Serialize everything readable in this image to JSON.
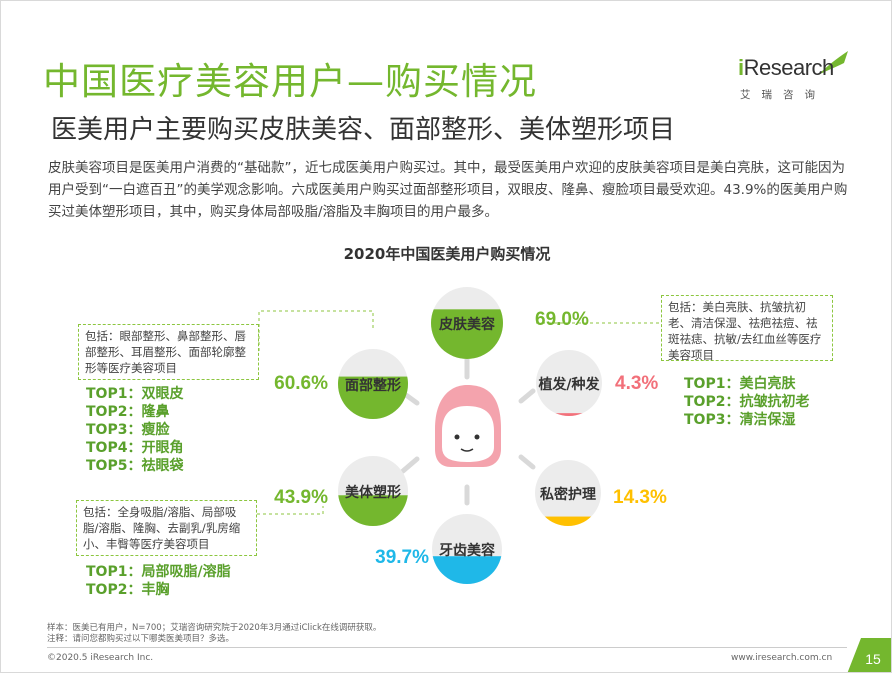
{
  "header": {
    "title": "中国医疗美容用户—购买情况",
    "subtitle": "医美用户主要购买皮肤美容、面部整形、美体塑形项目"
  },
  "logo": {
    "word_i": "i",
    "word_rest": "Research",
    "chinese": "艾瑞咨询"
  },
  "intro": "皮肤美容项目是医美用户消费的“基础款”，近七成医美用户购买过。其中，最受医美用户欢迎的皮肤美容项目是美白亮肤，这可能因为用户受到“一白遮百丑”的美学观念影响。六成医美用户购买过面部整形项目，双眼皮、隆鼻、瘦脸项目最受欢迎。43.9%的医美用户购买过美体塑形项目，其中，购买身体局部吸脂/溶脂及丰胸项目的用户最多。",
  "chart_data": {
    "type": "bubble-ring",
    "title": "2020年中国医美用户购买情况",
    "categories": [
      "皮肤美容",
      "植发/种发",
      "私密护理",
      "牙齿美容",
      "美体塑形",
      "面部整形"
    ],
    "values": [
      69.0,
      4.3,
      14.3,
      39.7,
      43.9,
      60.6
    ],
    "value_labels": [
      "69.0%",
      "4.3%",
      "14.3%",
      "39.7%",
      "43.9%",
      "60.6%"
    ],
    "unit": "%",
    "colors": [
      "#74b72e",
      "#f2707a",
      "#ffc000",
      "#1fb8e8",
      "#74b72e",
      "#74b72e"
    ]
  },
  "notes": {
    "face": {
      "desc": "包括：眼部整形、鼻部整形、唇部整形、耳眉整形、面部轮廓整形等医疗美容项目",
      "tops": [
        "TOP1：双眼皮",
        "TOP2：隆鼻",
        "TOP3：瘦脸",
        "TOP4：开眼角",
        "TOP5：祛眼袋"
      ]
    },
    "skin": {
      "desc": "包括：美白亮肤、抗皱抗初老、清洁保湿、祛疤祛痘、祛斑祛痣、抗敏/去红血丝等医疗美容项目",
      "tops": [
        "TOP1：美白亮肤",
        "TOP2：抗皱抗初老",
        "TOP3：清洁保湿"
      ]
    },
    "body": {
      "desc": "包括：全身吸脂/溶脂、局部吸脂/溶脂、隆胸、去副乳/乳房缩小、丰臀等医疗美容项目",
      "tops": [
        "TOP1：局部吸脂/溶脂",
        "TOP2：丰胸"
      ]
    }
  },
  "footer": {
    "sample": "样本：医美已有用户，N=700；艾瑞咨询研究院于2020年3月通过iClick在线调研获取。",
    "remark": "注释：请问您都购买过以下哪类医美项目？多选。",
    "copyright": "©2020.5 iResearch Inc.",
    "website": "www.iresearch.com.cn",
    "page_number": "15"
  }
}
